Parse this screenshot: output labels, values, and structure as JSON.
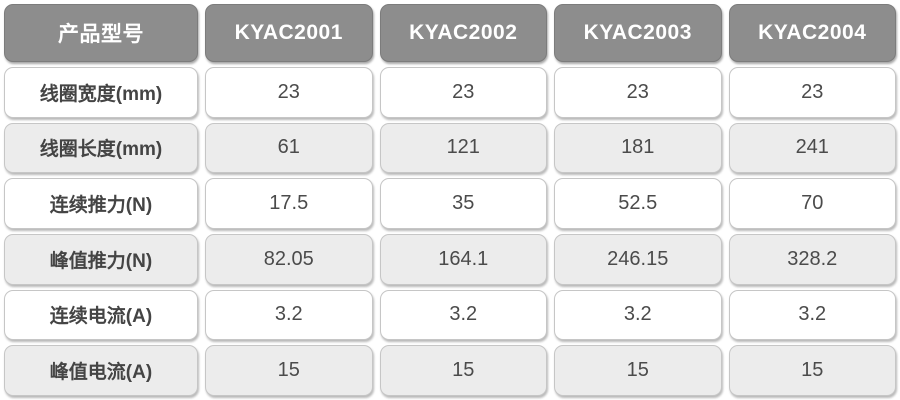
{
  "chart_data": {
    "type": "table",
    "title": "",
    "columns": [
      "产品型号",
      "KYAC2001",
      "KYAC2002",
      "KYAC2003",
      "KYAC2004"
    ],
    "rows": [
      [
        "线圈宽度(mm)",
        "23",
        "23",
        "23",
        "23"
      ],
      [
        "线圈长度(mm)",
        "61",
        "121",
        "181",
        "241"
      ],
      [
        "连续推力(N)",
        "17.5",
        "35",
        "52.5",
        "70"
      ],
      [
        "峰值推力(N)",
        "82.05",
        "164.1",
        "246.15",
        "328.2"
      ],
      [
        "连续电流(A)",
        "3.2",
        "3.2",
        "3.2",
        "3.2"
      ],
      [
        "峰值电流(A)",
        "15",
        "15",
        "15",
        "15"
      ]
    ]
  },
  "colors": {
    "header_bg": "#8d8d8d",
    "header_text": "#ffffff",
    "row_bg": "#ffffff",
    "row_alt_bg": "#ececec",
    "body_text": "#4b4b4b",
    "cell_border": "#c6c6c6"
  }
}
